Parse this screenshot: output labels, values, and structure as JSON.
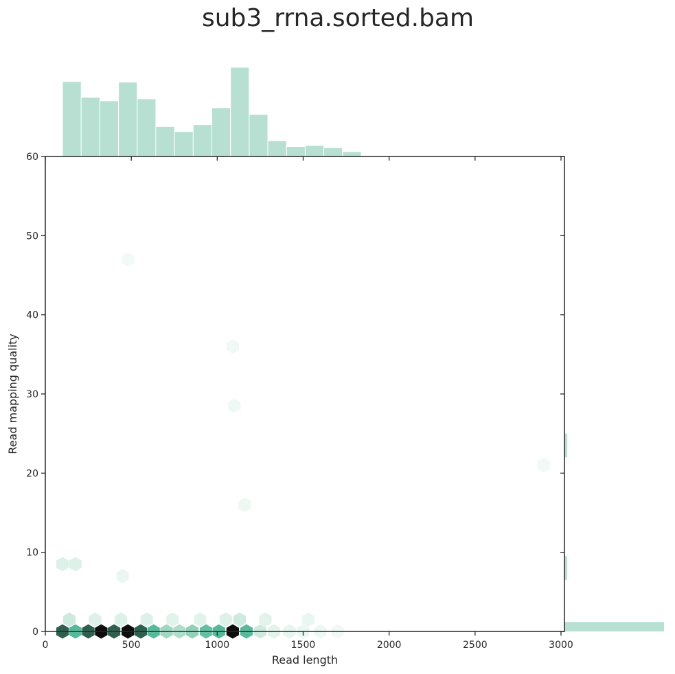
{
  "chart_data": {
    "type": "hexbin",
    "title": "sub3_rrna.sorted.bam",
    "xlabel": "Read length",
    "ylabel": "Read mapping quality",
    "xlim": [
      0,
      3020
    ],
    "ylim": [
      0,
      60
    ],
    "xticks": [
      0,
      500,
      1000,
      1500,
      2000,
      2500,
      3000
    ],
    "yticks": [
      0,
      10,
      20,
      30,
      40,
      50,
      60
    ],
    "colors": {
      "marginal_bar": "#b7e0d2",
      "hex_light": "#eef8f4",
      "hex_mid": "#58b99a",
      "hex_dark": "#2f5f4e",
      "hex_darkest": "#0d0d0d",
      "axis": "#262626"
    },
    "hexbins": [
      {
        "x": 100,
        "y": 0,
        "density": 0.85
      },
      {
        "x": 175,
        "y": 0,
        "density": 0.6
      },
      {
        "x": 250,
        "y": 0,
        "density": 0.85
      },
      {
        "x": 325,
        "y": 0,
        "density": 1.0
      },
      {
        "x": 400,
        "y": 0,
        "density": 0.85
      },
      {
        "x": 480,
        "y": 0,
        "density": 1.0
      },
      {
        "x": 555,
        "y": 0,
        "density": 0.85
      },
      {
        "x": 630,
        "y": 0,
        "density": 0.6
      },
      {
        "x": 705,
        "y": 0,
        "density": 0.35
      },
      {
        "x": 780,
        "y": 0,
        "density": 0.3
      },
      {
        "x": 855,
        "y": 0,
        "density": 0.4
      },
      {
        "x": 935,
        "y": 0,
        "density": 0.55
      },
      {
        "x": 1010,
        "y": 0,
        "density": 0.6
      },
      {
        "x": 1090,
        "y": 0,
        "density": 1.0
      },
      {
        "x": 1170,
        "y": 0,
        "density": 0.6
      },
      {
        "x": 1250,
        "y": 0,
        "density": 0.2
      },
      {
        "x": 1330,
        "y": 0,
        "density": 0.12
      },
      {
        "x": 1420,
        "y": 0,
        "density": 0.1
      },
      {
        "x": 1500,
        "y": 0,
        "density": 0.08
      },
      {
        "x": 1600,
        "y": 0,
        "density": 0.06
      },
      {
        "x": 1700,
        "y": 0,
        "density": 0.04
      },
      {
        "x": 140,
        "y": 1.5,
        "density": 0.2
      },
      {
        "x": 290,
        "y": 1.5,
        "density": 0.15
      },
      {
        "x": 440,
        "y": 1.5,
        "density": 0.15
      },
      {
        "x": 590,
        "y": 1.5,
        "density": 0.15
      },
      {
        "x": 740,
        "y": 1.5,
        "density": 0.12
      },
      {
        "x": 900,
        "y": 1.5,
        "density": 0.12
      },
      {
        "x": 1050,
        "y": 1.5,
        "density": 0.15
      },
      {
        "x": 1130,
        "y": 1.5,
        "density": 0.2
      },
      {
        "x": 1280,
        "y": 1.5,
        "density": 0.12
      },
      {
        "x": 1530,
        "y": 1.5,
        "density": 0.08
      },
      {
        "x": 100,
        "y": 8.5,
        "density": 0.15
      },
      {
        "x": 175,
        "y": 8.5,
        "density": 0.15
      },
      {
        "x": 450,
        "y": 7,
        "density": 0.08
      },
      {
        "x": 1160,
        "y": 16,
        "density": 0.06
      },
      {
        "x": 1100,
        "y": 28.5,
        "density": 0.05
      },
      {
        "x": 1090,
        "y": 36,
        "density": 0.04
      },
      {
        "x": 480,
        "y": 47,
        "density": 0.03
      },
      {
        "x": 2900,
        "y": 21,
        "density": 0.04
      }
    ],
    "marginal_x": {
      "bin_start": 100,
      "bin_width": 108.6,
      "counts": [
        840,
        663,
        624,
        833,
        646,
        336,
        280,
        357,
        546,
        1000,
        472,
        178,
        112,
        124,
        100,
        55,
        6,
        6,
        3,
        6,
        3,
        3,
        3,
        0,
        0,
        0,
        6
      ]
    },
    "marginal_y": {
      "bins": [
        {
          "y0": 0,
          "y1": 1.2,
          "count": 1000
        },
        {
          "y0": 6.5,
          "y1": 9.5,
          "count": 0.025
        },
        {
          "y0": 22,
          "y1": 25,
          "count": 0.01
        }
      ]
    }
  }
}
